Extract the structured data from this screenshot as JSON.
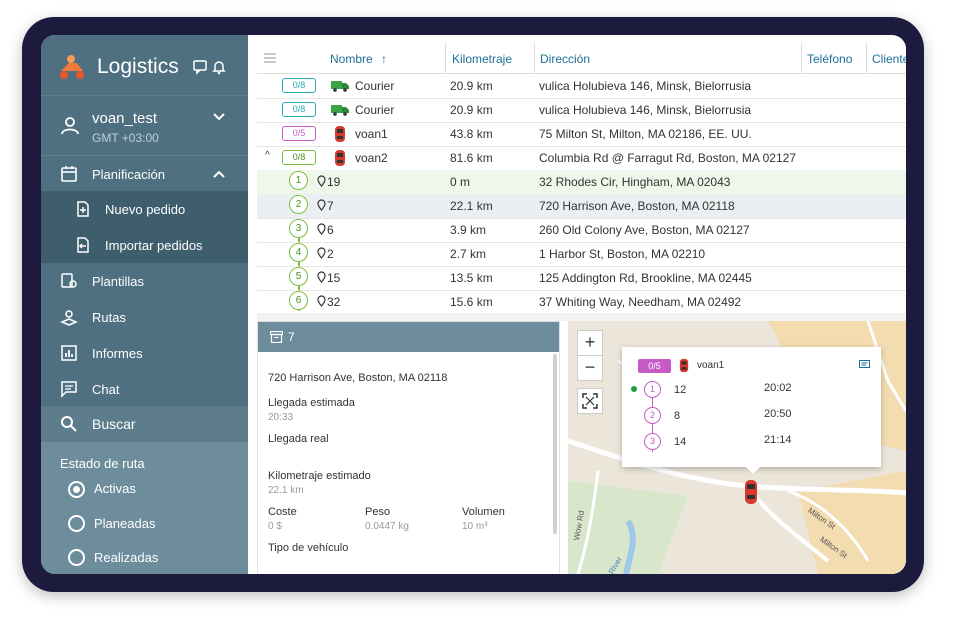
{
  "app": {
    "title": "Logistics"
  },
  "user": {
    "name": "voan_test",
    "timezone": "GMT +03:00"
  },
  "menu": {
    "planning": "Planificación",
    "new_order": "Nuevo pedido",
    "import_orders": "Importar pedidos",
    "templates": "Plantillas",
    "routes": "Rutas",
    "reports": "Informes",
    "chat": "Chat",
    "search": "Buscar"
  },
  "route_state": {
    "header": "Estado de ruta",
    "options": [
      "Activas",
      "Planeadas",
      "Realizadas"
    ],
    "selected": "Activas"
  },
  "table": {
    "columns": [
      "Nombre",
      "Kilometraje",
      "Dirección",
      "Teléfono",
      "Cliente"
    ],
    "sort_indicator": "↑",
    "routes": [
      {
        "badge": "0/8",
        "name": "Courier",
        "km": "20.9 km",
        "address": "vulica Holubieva 146, Minsk, Bielorrusia",
        "color": "#2aa8b5"
      },
      {
        "badge": "0/8",
        "name": "Courier",
        "km": "20.9 km",
        "address": "vulica Holubieva 146, Minsk, Bielorrusia",
        "color": "#2aa8b5"
      },
      {
        "badge": "0/5",
        "name": "voan1",
        "km": "43.8 km",
        "address": "75 Milton St, Milton, MA 02186, EE. UU.",
        "color": "#c65bc6"
      },
      {
        "badge": "0/8",
        "name": "voan2",
        "km": "81.6 km",
        "address": "Columbia Rd @ Farragut Rd, Boston, MA 02127",
        "color": "#7bc043"
      }
    ],
    "expand_icon": "^",
    "stops": [
      {
        "n": "1",
        "id": "19",
        "km": "0 m",
        "address": "32 Rhodes Cir, Hingham, MA 02043"
      },
      {
        "n": "2",
        "id": "7",
        "km": "22.1 km",
        "address": "720 Harrison Ave, Boston, MA 02118"
      },
      {
        "n": "3",
        "id": "6",
        "km": "3.9 km",
        "address": "260 Old Colony Ave, Boston, MA 02127"
      },
      {
        "n": "4",
        "id": "2",
        "km": "2.7 km",
        "address": "1 Harbor St, Boston, MA 02210"
      },
      {
        "n": "5",
        "id": "15",
        "km": "13.5 km",
        "address": "125 Addington Rd, Brookline, MA 02445"
      },
      {
        "n": "6",
        "id": "32",
        "km": "15.6 km",
        "address": "37 Whiting Way, Needham, MA 02492"
      }
    ]
  },
  "detail": {
    "order_id": "7",
    "address": "720 Harrison Ave, Boston, MA 02118",
    "eta_label": "Llegada estimada",
    "eta_value": "20:33",
    "actual_label": "Llegada real",
    "km_label": "Kilometraje estimado",
    "km_value": "22.1 km",
    "cost_label": "Coste",
    "cost_value": "0 $",
    "weight_label": "Peso",
    "weight_value": "0.0447 kg",
    "volume_label": "Volumen",
    "volume_value": "10 m³",
    "vehicle_label": "Tipo de vehículo"
  },
  "map": {
    "zoom_in": "+",
    "zoom_out": "−",
    "popup": {
      "badge": "0/5",
      "name": "voan1",
      "stops": [
        {
          "n": "1",
          "id": "12",
          "time": "20:02"
        },
        {
          "n": "2",
          "id": "8",
          "time": "20:50"
        },
        {
          "n": "3",
          "id": "14",
          "time": "21:14"
        }
      ]
    },
    "street_labels": [
      "Milton St",
      "Milton St",
      "River",
      "Wow Rd"
    ]
  },
  "colors": {
    "sidebar": "#4f7080",
    "active": "#3f5e6d",
    "accent": "#1e6f9a",
    "route_green": "#7bc043",
    "route_purple": "#c65bc6",
    "route_teal": "#2aa8b5"
  }
}
